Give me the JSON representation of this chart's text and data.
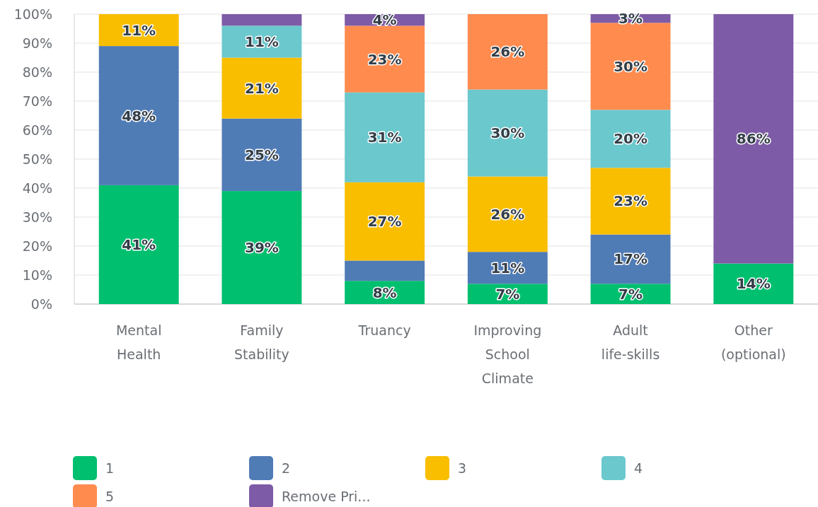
{
  "chart_data": {
    "type": "bar",
    "stacked": true,
    "categories": [
      "Mental Health",
      "Family Stability",
      "Truancy",
      "Improving School Climate",
      "Adult life-skills",
      "Other (optional)"
    ],
    "series": [
      {
        "name": "1",
        "color": "#00bf6f",
        "values": [
          41,
          39,
          8,
          7,
          7,
          14
        ],
        "value_labels": [
          "41%",
          "39%",
          "8%",
          "7%",
          "7%",
          "14%"
        ]
      },
      {
        "name": "2",
        "color": "#507cb6",
        "values": [
          48,
          25,
          7,
          11,
          17,
          null
        ],
        "value_labels": [
          "48%",
          "25%",
          null,
          "11%",
          "17%",
          null
        ]
      },
      {
        "name": "3",
        "color": "#f9be00",
        "values": [
          11,
          21,
          27,
          26,
          23,
          null
        ],
        "value_labels": [
          "11%",
          "21%",
          "27%",
          "26%",
          "23%",
          null
        ]
      },
      {
        "name": "4",
        "color": "#6bc8cd",
        "values": [
          null,
          11,
          31,
          30,
          20,
          null
        ],
        "value_labels": [
          null,
          "11%",
          "31%",
          "30%",
          "20%",
          null
        ]
      },
      {
        "name": "5",
        "color": "#ff8b4f",
        "values": [
          null,
          null,
          23,
          26,
          30,
          null
        ],
        "value_labels": [
          null,
          null,
          "23%",
          "26%",
          "30%",
          null
        ]
      },
      {
        "name": "Remove Pri...",
        "color": "#7d5ba6",
        "values": [
          null,
          4,
          4,
          null,
          3,
          86
        ],
        "value_labels": [
          null,
          null,
          "4%",
          null,
          "3%",
          "86%"
        ]
      }
    ],
    "ylim": [
      0,
      100
    ],
    "yticks": [
      {
        "value": 0,
        "label": "0%"
      },
      {
        "value": 10,
        "label": "10%"
      },
      {
        "value": 20,
        "label": "20%"
      },
      {
        "value": 30,
        "label": "30%"
      },
      {
        "value": 40,
        "label": "40%"
      },
      {
        "value": 50,
        "label": "50%"
      },
      {
        "value": 60,
        "label": "60%"
      },
      {
        "value": 70,
        "label": "70%"
      },
      {
        "value": 80,
        "label": "80%"
      },
      {
        "value": 90,
        "label": "90%"
      },
      {
        "value": 100,
        "label": "100%"
      }
    ],
    "grid": "y",
    "legend": "bottom"
  }
}
